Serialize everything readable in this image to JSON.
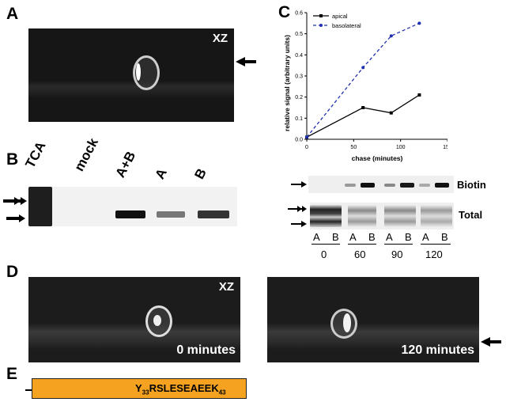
{
  "panels": {
    "A": "A",
    "B": "B",
    "C": "C",
    "D": "D",
    "E": "E"
  },
  "panel_a": {
    "view_label": "XZ"
  },
  "panel_b": {
    "lanes": [
      "TCA",
      "mock",
      "A+B",
      "A",
      "B"
    ]
  },
  "panel_c_chart": {
    "chart_data": {
      "type": "line",
      "xlabel": "chase (minutes)",
      "ylabel": "relative signal (arbitrary units)",
      "xlim": [
        0,
        150
      ],
      "ylim": [
        0,
        0.6
      ],
      "xticks": [
        "0",
        "50",
        "100",
        "150"
      ],
      "yticks": [
        "0.0",
        "0.1",
        "0.2",
        "0.3",
        "0.4",
        "0.5",
        "0.6"
      ],
      "legend_position": "top-left",
      "series": [
        {
          "name": "apical",
          "color": "#000000",
          "style": "solid",
          "marker": "square",
          "x": [
            0,
            60,
            90,
            120
          ],
          "y": [
            0.01,
            0.15,
            0.125,
            0.21
          ]
        },
        {
          "name": "basolateral",
          "color": "#1f2fb0",
          "style": "dashed",
          "marker": "circle",
          "x": [
            0,
            60,
            90,
            120
          ],
          "y": [
            0.01,
            0.34,
            0.49,
            0.55
          ]
        }
      ]
    }
  },
  "panel_c_blot": {
    "biotin_label": "Biotin",
    "total_label": "Total",
    "lane_labels": [
      "A",
      "B",
      "A",
      "B",
      "A",
      "B",
      "A",
      "B"
    ],
    "time_labels": [
      "0",
      "60",
      "90",
      "120"
    ]
  },
  "panel_d": {
    "view_label": "XZ",
    "left_caption": "0 minutes",
    "right_caption": "120 minutes"
  },
  "panel_e": {
    "seq_start": "Y",
    "seq_start_sub": "33",
    "seq_body": "RSLESEAEEK",
    "seq_end_sub": "43"
  },
  "colors": {
    "micro_bg": "#161616",
    "sequence_box": "#f4a21f",
    "basolateral": "#1f2fb0"
  }
}
